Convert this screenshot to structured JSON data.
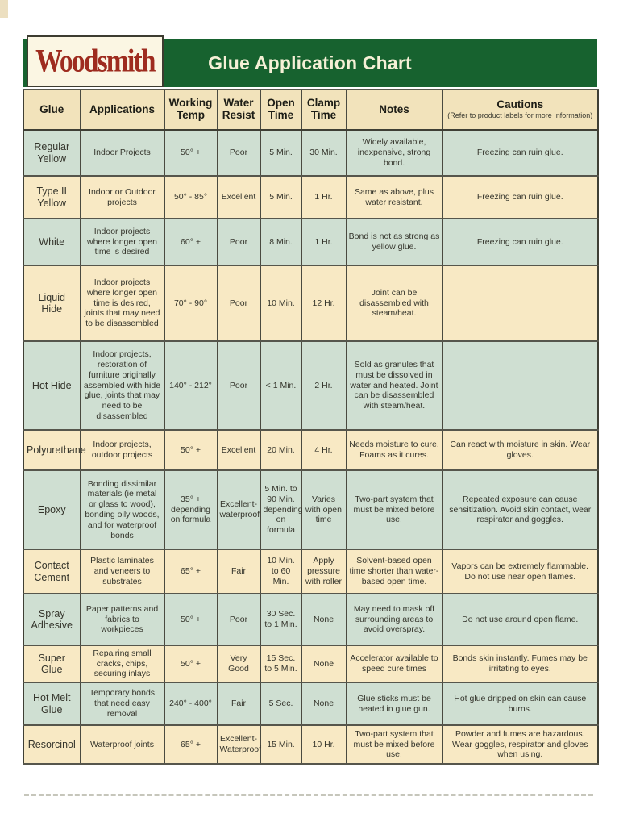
{
  "page": {
    "logo_text": "Woodsmith",
    "title": "Glue Application Chart"
  },
  "colors": {
    "band_green": "#17622f",
    "row_green": "#cfdfd2",
    "row_cream": "#f8e9c4",
    "header_cream": "#f2e3bb",
    "logo_red": "#9e2c1f",
    "title_text": "#f5f0d6",
    "border_dark": "#3f3f35",
    "text_dark": "#35352c"
  },
  "table": {
    "headers": [
      {
        "label": "Glue"
      },
      {
        "label": "Applications"
      },
      {
        "label": "Working Temp"
      },
      {
        "label": "Water Resist"
      },
      {
        "label": "Open Time"
      },
      {
        "label": "Clamp Time"
      },
      {
        "label": "Notes"
      },
      {
        "label": "Cautions",
        "sub": "(Refer to product labels for more Information)"
      }
    ],
    "rows": [
      {
        "glue": "Regular Yellow",
        "applications": "Indoor Projects",
        "working_temp": "50° +",
        "water_resist": "Poor",
        "open_time": "5 Min.",
        "clamp_time": "30 Min.",
        "notes": "Widely available, inexpensive, strong bond.",
        "cautions": "Freezing can ruin glue."
      },
      {
        "glue": "Type II Yellow",
        "applications": "Indoor or Outdoor projects",
        "working_temp": "50° - 85°",
        "water_resist": "Excellent",
        "open_time": "5 Min.",
        "clamp_time": "1 Hr.",
        "notes": "Same as above, plus water resistant.",
        "cautions": "Freezing can ruin glue."
      },
      {
        "glue": "White",
        "applications": "Indoor projects where longer open time is desired",
        "working_temp": "60° +",
        "water_resist": "Poor",
        "open_time": "8 Min.",
        "clamp_time": "1 Hr.",
        "notes": "Bond is not as strong as yellow glue.",
        "cautions": "Freezing can ruin glue."
      },
      {
        "glue": "Liquid Hide",
        "applications": "Indoor projects where longer open time is desired, joints that may need to be disassembled",
        "working_temp": "70° - 90°",
        "water_resist": "Poor",
        "open_time": "10 Min.",
        "clamp_time": "12 Hr.",
        "notes": "Joint can be disassembled with steam/heat.",
        "cautions": ""
      },
      {
        "glue": "Hot Hide",
        "applications": "Indoor projects, restoration of furniture originally assembled with hide glue, joints that may need to be disassembled",
        "working_temp": "140° - 212°",
        "water_resist": "Poor",
        "open_time": "< 1 Min.",
        "clamp_time": "2 Hr.",
        "notes": "Sold as granules that must be dissolved in water and heated. Joint can be disassembled with steam/heat.",
        "cautions": ""
      },
      {
        "glue": "Polyurethane",
        "applications": "Indoor projects, outdoor projects",
        "working_temp": "50° +",
        "water_resist": "Excellent",
        "open_time": "20 Min.",
        "clamp_time": "4 Hr.",
        "notes": "Needs moisture to cure. Foams as it cures.",
        "cautions": "Can react with moisture in skin. Wear gloves."
      },
      {
        "glue": "Epoxy",
        "applications": "Bonding dissimilar materials (ie metal or glass to wood), bonding oily woods, and for waterproof bonds",
        "working_temp": "35° + depending on formula",
        "water_resist": "Excellent-waterproof",
        "open_time": "5 Min. to 90 Min. depending on formula",
        "clamp_time": "Varies with open time",
        "notes": "Two-part system that must be mixed before use.",
        "cautions": "Repeated exposure can cause sensitization. Avoid skin contact, wear respirator and goggles."
      },
      {
        "glue": "Contact Cement",
        "applications": "Plastic laminates and veneers to substrates",
        "working_temp": "65° +",
        "water_resist": "Fair",
        "open_time": "10 Min. to 60 Min.",
        "clamp_time": "Apply pressure with roller",
        "notes": "Solvent-based open time shorter than water-based open time.",
        "cautions": "Vapors can be extremely flammable. Do not use near open flames."
      },
      {
        "glue": "Spray Adhesive",
        "applications": "Paper patterns and fabrics to workpieces",
        "working_temp": "50° +",
        "water_resist": "Poor",
        "open_time": "30 Sec. to 1 Min.",
        "clamp_time": "None",
        "notes": "May need to mask off surrounding areas to avoid overspray.",
        "cautions": "Do not use around open flame."
      },
      {
        "glue": "Super Glue",
        "applications": "Repairing small cracks, chips, securing inlays",
        "working_temp": "50° +",
        "water_resist": "Very Good",
        "open_time": "15 Sec. to 5 Min.",
        "clamp_time": "None",
        "notes": "Accelerator available to speed cure times",
        "cautions": "Bonds skin instantly. Fumes may be irritating to eyes."
      },
      {
        "glue": "Hot Melt Glue",
        "applications": "Temporary bonds that need easy removal",
        "working_temp": "240° - 400°",
        "water_resist": "Fair",
        "open_time": "5 Sec.",
        "clamp_time": "None",
        "notes": "Glue sticks must be heated in glue gun.",
        "cautions": "Hot glue dripped on skin can cause burns."
      },
      {
        "glue": "Resorcinol",
        "applications": "Waterproof joints",
        "working_temp": "65° +",
        "water_resist": "Excellent-Waterproof",
        "open_time": "15 Min.",
        "clamp_time": "10 Hr.",
        "notes": "Two-part system that must be mixed before use.",
        "cautions": "Powder and fumes are hazardous. Wear goggles, respirator and gloves when using."
      }
    ]
  }
}
